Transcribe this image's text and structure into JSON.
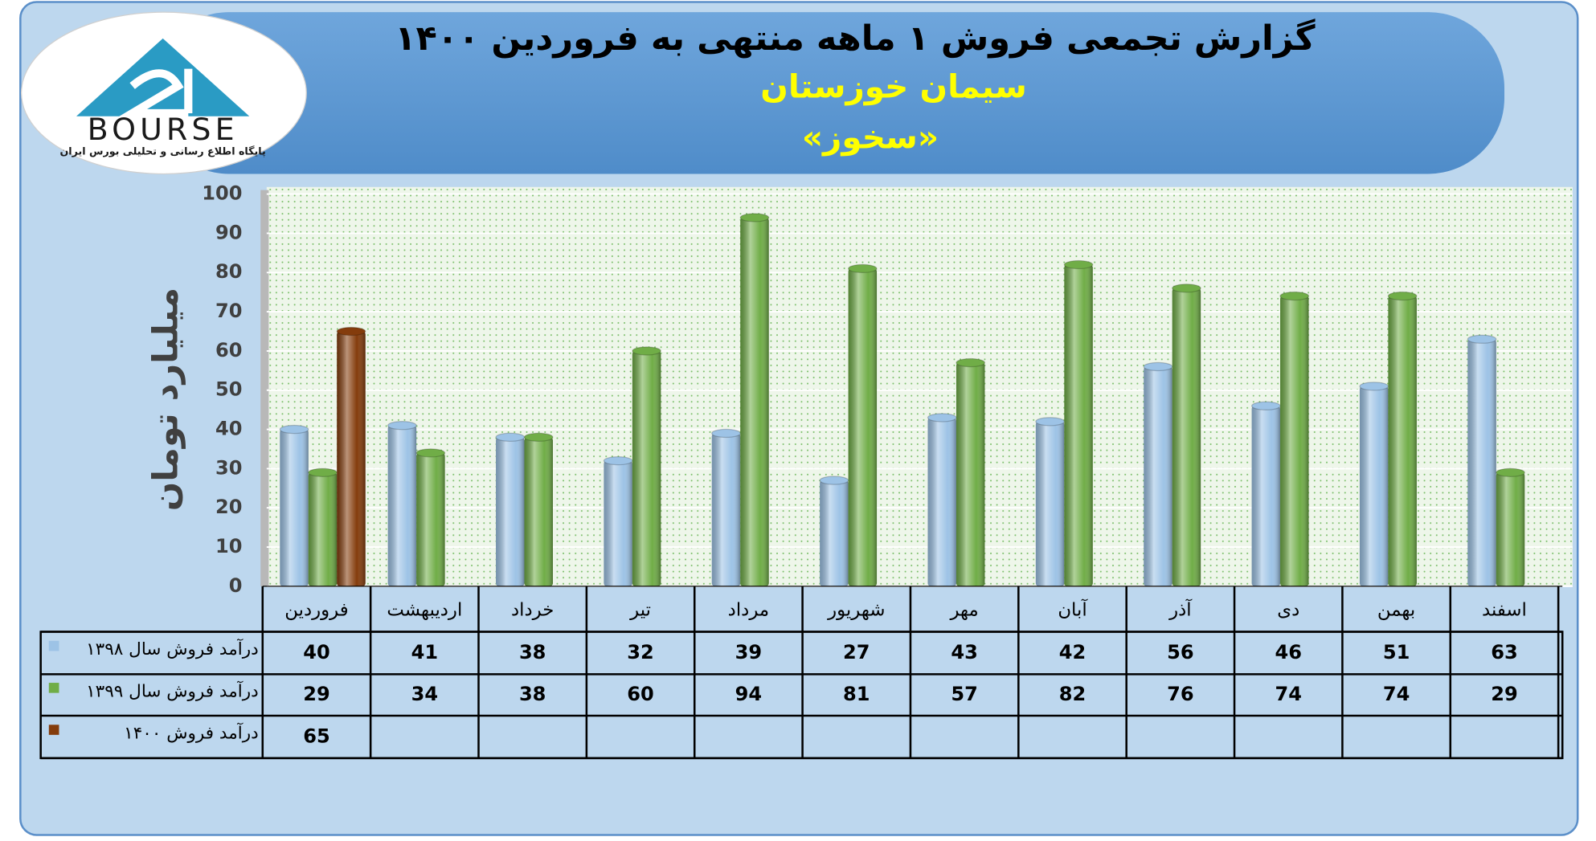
{
  "logo": {
    "text": "BOURSE",
    "tagline": "پایگاه اطلاع رسانی و تحلیلی بورس ایران"
  },
  "chart_data": {
    "type": "bar",
    "title": "گزارش تجمعی فروش ۱ ماهه منتهی به فروردین ۱۴۰۰",
    "subtitle": "سیمان خوزستان",
    "subtitle2": "«سخوز»",
    "y_label": "میلیارد تومان",
    "categories": [
      "فروردین",
      "اردیبهشت",
      "خرداد",
      "تیر",
      "مرداد",
      "شهریور",
      "مهر",
      "آبان",
      "آذر",
      "دی",
      "بهمن",
      "اسفند"
    ],
    "series": [
      {
        "name": "درآمد فروش سال ۱۳۹۸",
        "color": "#9dc3e6",
        "values": [
          40,
          41,
          38,
          32,
          39,
          27,
          43,
          42,
          56,
          46,
          51,
          63
        ]
      },
      {
        "name": "درآمد فروش سال ۱۳۹۹",
        "color": "#70ad47",
        "values": [
          29,
          34,
          38,
          60,
          94,
          81,
          57,
          82,
          76,
          74,
          74,
          29
        ]
      },
      {
        "name": "درآمد فروش ۱۴۰۰",
        "color": "#843c0c",
        "values": [
          65,
          null,
          null,
          null,
          null,
          null,
          null,
          null,
          null,
          null,
          null,
          null
        ]
      }
    ],
    "ylim": [
      0,
      100
    ],
    "yticks": [
      0,
      10,
      20,
      30,
      40,
      50,
      60,
      70,
      80,
      90,
      100
    ],
    "grid": true
  }
}
